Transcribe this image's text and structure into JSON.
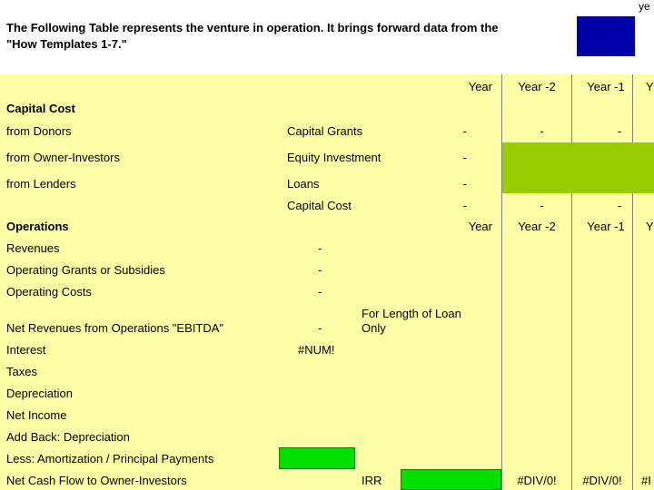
{
  "corner_label": "ye",
  "header": {
    "line1": "The Following Table represents the venture in operation.  It brings forward data from the",
    "line2": "\"How Templates 1-7.\""
  },
  "colors": {
    "yellow": "#ffffa8",
    "lime": "#99cc00",
    "green": "#00e000",
    "blue": "#0000a8"
  },
  "year_headers": [
    "Year",
    "Year -2",
    "Year -1",
    "Y"
  ],
  "capital": {
    "title": "Capital Cost",
    "rows": [
      {
        "label": "from Donors",
        "item": "Capital Grants",
        "year": "-",
        "ym2": "-",
        "ym1": "-"
      },
      {
        "label": "from Owner-Investors",
        "item": "Equity Investment",
        "year": "-"
      },
      {
        "label": "from Lenders",
        "item": "Loans",
        "year": "-"
      }
    ],
    "total": {
      "item": "Capital Cost",
      "year": "-",
      "ym2": "-",
      "ym1": "-"
    }
  },
  "operations": {
    "title": "Operations",
    "rows": [
      {
        "label": "Revenues",
        "value": "-"
      },
      {
        "label": "Operating Grants or Subsidies",
        "value": "-"
      },
      {
        "label": "Operating Costs",
        "value": "-"
      },
      {
        "label": "Net Revenues from Operations \"EBITDA\"",
        "value": "-"
      },
      {
        "label": "Interest",
        "value": "#NUM!"
      },
      {
        "label": "Taxes"
      },
      {
        "label": "Depreciation"
      },
      {
        "label": "Net Income"
      },
      {
        "label": "Add Back: Depreciation"
      },
      {
        "label": "Less: Amortization / Principal Payments"
      },
      {
        "label": "Net Cash Flow to Owner-Investors"
      }
    ],
    "loan_note_line1": "For Length of Loan",
    "loan_note_line2": "Only",
    "irr_label": "IRR",
    "cashflow": [
      "#DIV/0!",
      "#DIV/0!",
      "#I"
    ]
  }
}
